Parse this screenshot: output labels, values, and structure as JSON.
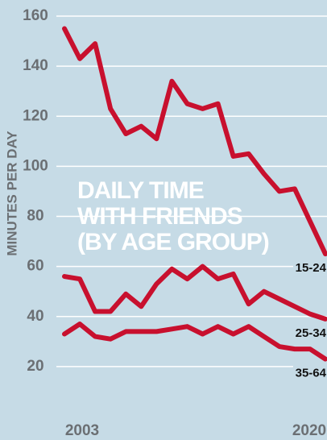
{
  "chart_data": {
    "type": "line",
    "title": [
      "DAILY TIME",
      "WITH FRIENDS",
      "(BY AGE GROUP)"
    ],
    "ylabel": "MINUTES PER DAY",
    "x": [
      2003,
      2004,
      2005,
      2006,
      2007,
      2008,
      2009,
      2010,
      2011,
      2012,
      2013,
      2014,
      2015,
      2016,
      2017,
      2018,
      2019,
      2020
    ],
    "xlim": [
      2003,
      2020
    ],
    "xticks": [
      2003,
      2020
    ],
    "ylim": [
      0,
      160
    ],
    "yticks": [
      20,
      40,
      60,
      80,
      100,
      120,
      140,
      160
    ],
    "grid": true,
    "series": [
      {
        "name": "15-24",
        "color": "#c8102e",
        "values": [
          155,
          143,
          149,
          123,
          113,
          116,
          111,
          134,
          125,
          123,
          125,
          104,
          105,
          97,
          90,
          91,
          78,
          65
        ]
      },
      {
        "name": "25-34",
        "color": "#c8102e",
        "values": [
          56,
          55,
          42,
          42,
          49,
          44,
          53,
          59,
          55,
          60,
          55,
          57,
          45,
          50,
          47,
          44,
          41,
          39
        ]
      },
      {
        "name": "35-64",
        "color": "#c8102e",
        "values": [
          33,
          37,
          32,
          31,
          34,
          34,
          34,
          35,
          36,
          33,
          36,
          33,
          36,
          32,
          28,
          27,
          27,
          23
        ]
      }
    ]
  }
}
